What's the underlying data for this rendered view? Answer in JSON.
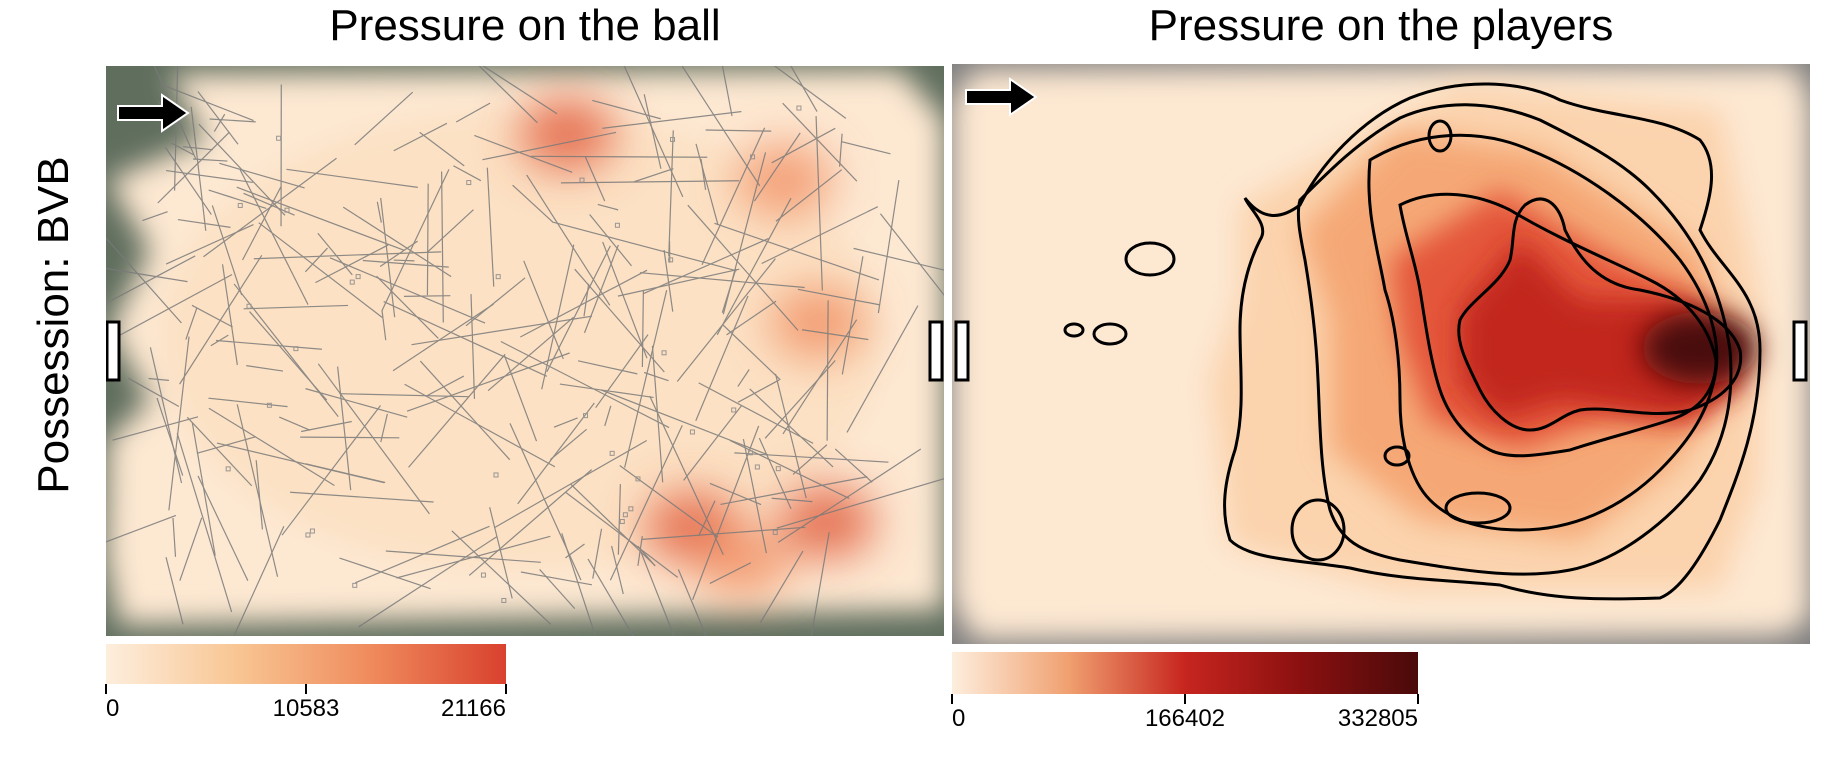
{
  "row_label": "Possession: BVB",
  "chart_data": [
    {
      "type": "heatmap",
      "title": "Pressure on the ball",
      "colorbar": {
        "min": 0,
        "max": 21166,
        "ticks": [
          0,
          10583,
          21166
        ],
        "colors": [
          "#fdeedd",
          "#f8c592",
          "#ef8a5c",
          "#d9412e"
        ]
      },
      "overlay": "ball movement trajectories",
      "attack_direction": "right",
      "hotspots": [
        {
          "x": 0.55,
          "y": 0.12,
          "level": 0.75
        },
        {
          "x": 0.81,
          "y": 0.2,
          "level": 0.6
        },
        {
          "x": 0.85,
          "y": 0.45,
          "level": 0.65
        },
        {
          "x": 0.7,
          "y": 0.81,
          "level": 0.75
        },
        {
          "x": 0.86,
          "y": 0.8,
          "level": 0.8
        },
        {
          "x": 0.76,
          "y": 0.87,
          "level": 0.55
        }
      ]
    },
    {
      "type": "heatmap",
      "title": "Pressure on the players",
      "colorbar": {
        "min": 0,
        "max": 332805,
        "ticks": [
          0,
          166402,
          332805
        ],
        "colors": [
          "#fdeedd",
          "#f0a070",
          "#c7251f",
          "#8a1010",
          "#4a0a0a"
        ]
      },
      "contours": true,
      "attack_direction": "right",
      "peak": {
        "x": 0.87,
        "y": 0.47
      }
    }
  ],
  "colors": {
    "background": "#ffffff",
    "pitch_outside": "#7f7f7f",
    "pitch_green": "#5b6b58",
    "heat_base": "#fde8d2",
    "trajectory": "#7a7a7a"
  }
}
